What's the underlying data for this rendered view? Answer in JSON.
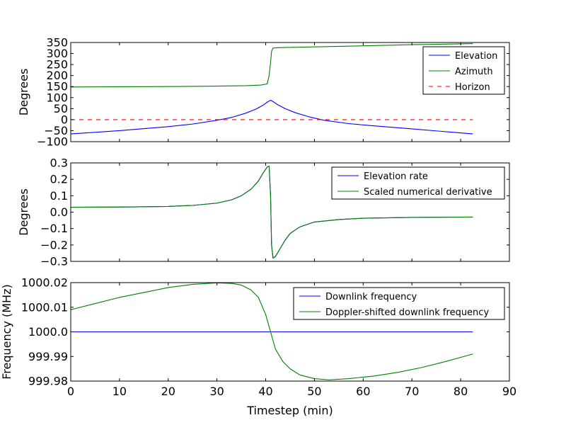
{
  "chart_data": [
    {
      "type": "line",
      "ylabel": "Degrees",
      "xlim": [
        0,
        90
      ],
      "ylim": [
        -100,
        350
      ],
      "yticks": [
        -100,
        -50,
        0,
        50,
        100,
        150,
        200,
        250,
        300,
        350
      ],
      "ytick_labels": [
        "−100",
        "−50",
        "0",
        "50",
        "100",
        "150",
        "200",
        "250",
        "300",
        "350"
      ],
      "legend": "top-right",
      "series": [
        {
          "name": "Elevation",
          "color": "#0000ff",
          "dash": false,
          "x": [
            0,
            10,
            20,
            25,
            30,
            33,
            36,
            38,
            39.5,
            40.5,
            41,
            41.5,
            42.5,
            44,
            46,
            49,
            52,
            57,
            62,
            70,
            76,
            82.5
          ],
          "y": [
            -65,
            -50,
            -32,
            -20,
            -3,
            10,
            30,
            48,
            66,
            82,
            88,
            82,
            67,
            50,
            32,
            12,
            -3,
            -18,
            -28,
            -42,
            -53,
            -65
          ]
        },
        {
          "name": "Azimuth",
          "color": "#008000",
          "dash": false,
          "x": [
            0,
            20,
            30,
            36,
            39,
            40.3,
            40.7,
            41,
            41.2,
            41.5,
            43,
            50,
            60,
            70,
            82.5
          ],
          "y": [
            148,
            150,
            152,
            154,
            157,
            162,
            200,
            260,
            310,
            325,
            327,
            330,
            335,
            340,
            345
          ]
        },
        {
          "name": "Horizon",
          "color": "#ff0000",
          "dash": true,
          "x": [
            0,
            82.5
          ],
          "y": [
            0,
            0
          ]
        }
      ]
    },
    {
      "type": "line",
      "ylabel": "Degrees",
      "xlim": [
        0,
        90
      ],
      "ylim": [
        -0.3,
        0.3
      ],
      "yticks": [
        -0.3,
        -0.2,
        -0.1,
        0.0,
        0.1,
        0.2,
        0.3
      ],
      "ytick_labels": [
        "−0.3",
        "−0.2",
        "−0.1",
        "0.0",
        "0.1",
        "0.2",
        "0.3"
      ],
      "legend": "top-right",
      "series": [
        {
          "name": "Elevation rate",
          "color": "#0000ff",
          "dash": false,
          "x": [
            0,
            10,
            20,
            25,
            30,
            33,
            35,
            37,
            38.5,
            39.5,
            40.3,
            40.7,
            41,
            41.2,
            41.5,
            42,
            43,
            44,
            45,
            47,
            50,
            55,
            60,
            70,
            82.5
          ],
          "y": [
            0.03,
            0.031,
            0.035,
            0.041,
            0.055,
            0.075,
            0.1,
            0.14,
            0.19,
            0.24,
            0.275,
            0.28,
            0.1,
            -0.2,
            -0.28,
            -0.27,
            -0.22,
            -0.17,
            -0.13,
            -0.09,
            -0.06,
            -0.045,
            -0.037,
            -0.032,
            -0.03
          ]
        },
        {
          "name": "Scaled numerical derivative",
          "color": "#008000",
          "dash": false,
          "x": [
            0,
            10,
            20,
            25,
            30,
            33,
            35,
            37,
            38.5,
            39.5,
            40.3,
            40.7,
            41,
            41.2,
            41.5,
            42,
            43,
            44,
            45,
            47,
            50,
            55,
            60,
            70,
            82.5
          ],
          "y": [
            0.03,
            0.031,
            0.035,
            0.041,
            0.055,
            0.075,
            0.1,
            0.14,
            0.19,
            0.24,
            0.275,
            0.28,
            0.1,
            -0.2,
            -0.28,
            -0.27,
            -0.22,
            -0.17,
            -0.13,
            -0.09,
            -0.06,
            -0.045,
            -0.037,
            -0.032,
            -0.03
          ]
        }
      ]
    },
    {
      "type": "line",
      "ylabel": "Frequency (MHz)",
      "xlabel": "Timestep (min)",
      "xlim": [
        0,
        90
      ],
      "ylim": [
        999.98,
        1000.02
      ],
      "xticks": [
        0,
        10,
        20,
        30,
        40,
        50,
        60,
        70,
        80,
        90
      ],
      "xtick_labels": [
        "0",
        "10",
        "20",
        "30",
        "40",
        "50",
        "60",
        "70",
        "80",
        "90"
      ],
      "yticks": [
        999.98,
        999.99,
        1000.0,
        1000.01,
        1000.02
      ],
      "ytick_labels": [
        "999.98",
        "999.99",
        "1000.0",
        "1000.01",
        "1000.02"
      ],
      "legend": "top-right",
      "series": [
        {
          "name": "Downlink frequency",
          "color": "#0000ff",
          "dash": false,
          "x": [
            0,
            82.5
          ],
          "y": [
            1000.0,
            1000.0
          ]
        },
        {
          "name": "Doppler-shifted downlink frequency",
          "color": "#008000",
          "dash": false,
          "x": [
            0,
            5,
            10,
            15,
            20,
            25,
            30,
            33,
            35,
            37,
            38.5,
            40,
            41,
            42,
            43.5,
            45,
            47,
            50,
            53,
            57,
            62,
            67,
            72,
            77,
            82.5
          ],
          "y": [
            1000.009,
            1000.0115,
            1000.014,
            1000.016,
            1000.018,
            1000.0193,
            1000.0199,
            1000.0197,
            1000.019,
            1000.017,
            1000.014,
            1000.007,
            1000.0,
            999.993,
            999.988,
            999.985,
            999.9825,
            999.981,
            999.9805,
            999.981,
            999.982,
            999.9835,
            999.9855,
            999.988,
            999.991
          ]
        }
      ]
    }
  ]
}
